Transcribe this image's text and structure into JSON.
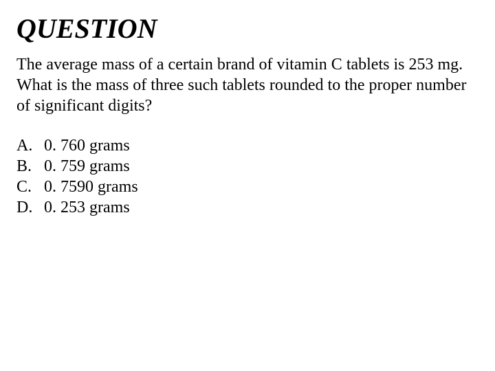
{
  "title": "QUESTION",
  "prompt": "The average mass of a certain brand of vitamin C tablets is 253 mg. What is the mass of three such tablets rounded to the proper number of significant digits?",
  "options": [
    {
      "letter": "A.",
      "text": "0. 760 grams"
    },
    {
      "letter": "B.",
      "text": "0. 759 grams"
    },
    {
      "letter": "C.",
      "text": "0. 7590 grams"
    },
    {
      "letter": "D.",
      "text": "0. 253 grams"
    }
  ],
  "colors": {
    "background": "#ffffff",
    "text": "#000000"
  },
  "typography": {
    "family": "Times New Roman",
    "title_fontsize": 40,
    "body_fontsize": 24,
    "title_weight": "bold",
    "title_style": "italic"
  }
}
